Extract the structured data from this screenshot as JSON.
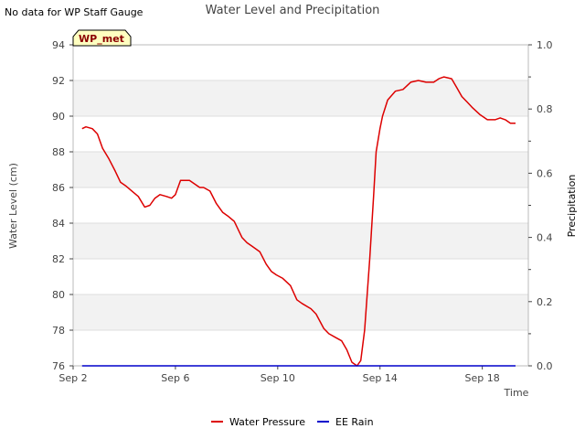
{
  "no_data_note": "No data for WP Staff Gauge",
  "chart_data": {
    "type": "line",
    "title": "Water Level and Precipitation",
    "xlabel": "Time",
    "ylabel": "Water Level (cm)",
    "y2label": "Precipitation",
    "site_badge": "WP_met",
    "x_ticks": [
      "Sep 2",
      "Sep 6",
      "Sep 10",
      "Sep 14",
      "Sep 18"
    ],
    "x_tick_days": [
      2,
      6,
      10,
      14,
      18
    ],
    "xlim": [
      2,
      19.8
    ],
    "ylim": [
      76,
      94
    ],
    "y_ticks": [
      76,
      78,
      80,
      82,
      84,
      86,
      88,
      90,
      92,
      94
    ],
    "y2lim": [
      0,
      1
    ],
    "y2_ticks": [
      "0.0",
      "0.2",
      "0.4",
      "0.6",
      "0.8",
      "1.0"
    ],
    "grid": true,
    "legend_position": "bottom",
    "series": [
      {
        "name": "Water Pressure",
        "axis": "left",
        "color": "#dd0000",
        "x": [
          2.35,
          2.5,
          2.75,
          2.95,
          3.15,
          3.4,
          3.65,
          3.85,
          4.05,
          4.3,
          4.55,
          4.8,
          5.0,
          5.2,
          5.4,
          5.65,
          5.85,
          6.0,
          6.2,
          6.4,
          6.45,
          6.55,
          6.75,
          6.95,
          7.1,
          7.35,
          7.6,
          7.85,
          8.05,
          8.3,
          8.6,
          8.8,
          9.0,
          9.3,
          9.55,
          9.75,
          9.95,
          10.2,
          10.5,
          10.75,
          10.95,
          11.3,
          11.5,
          11.8,
          12.0,
          12.25,
          12.5,
          12.7,
          12.9,
          13.1,
          13.25,
          13.4,
          13.6,
          13.75,
          13.85,
          14.0,
          14.1,
          14.3,
          14.6,
          14.9,
          15.2,
          15.5,
          15.8,
          16.1,
          16.3,
          16.5,
          16.8,
          17.0,
          17.2,
          17.4,
          17.6,
          17.9,
          18.2,
          18.5,
          18.7,
          18.9,
          19.1,
          19.3
        ],
        "y": [
          89.3,
          89.4,
          89.3,
          89.0,
          88.2,
          87.6,
          86.9,
          86.3,
          86.1,
          85.8,
          85.5,
          84.9,
          85.0,
          85.4,
          85.6,
          85.5,
          85.4,
          85.6,
          86.4,
          86.4,
          86.4,
          86.4,
          86.2,
          86.0,
          86.0,
          85.8,
          85.1,
          84.6,
          84.4,
          84.1,
          83.2,
          82.9,
          82.7,
          82.4,
          81.7,
          81.3,
          81.1,
          80.9,
          80.5,
          79.7,
          79.5,
          79.2,
          78.9,
          78.1,
          77.8,
          77.6,
          77.4,
          76.9,
          76.2,
          76.0,
          76.3,
          78.0,
          82.0,
          85.5,
          88.0,
          89.3,
          90.0,
          90.9,
          91.4,
          91.5,
          91.9,
          92.0,
          91.9,
          91.9,
          92.1,
          92.2,
          92.1,
          91.6,
          91.1,
          90.8,
          90.5,
          90.1,
          89.8,
          89.8,
          89.9,
          89.8,
          89.6,
          89.6
        ]
      },
      {
        "name": "EE Rain",
        "axis": "right",
        "color": "#0000cc",
        "x": [
          2.35,
          19.3
        ],
        "y": [
          0,
          0
        ]
      }
    ]
  }
}
